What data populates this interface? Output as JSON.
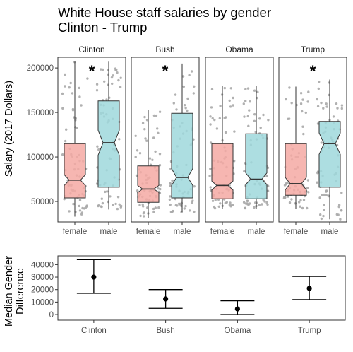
{
  "title_lines": [
    "White House staff salaries by gender",
    "Clinton - Trump"
  ],
  "colors": {
    "female": "#F4A9A3",
    "male": "#9FD8DC",
    "jitter": "#a8a8a8",
    "frame": "#333333",
    "line": "#333333"
  },
  "chart_data": [
    {
      "type": "boxplot",
      "ylabel": "Salary (2017 Dollars)",
      "ylim": [
        27000,
        212000
      ],
      "yticks": [
        50000,
        100000,
        150000,
        200000
      ],
      "ytick_labels": [
        "50000",
        "100000",
        "150000",
        "200000"
      ],
      "categories": [
        "female",
        "male"
      ],
      "notched": true,
      "panels": [
        {
          "name": "Clinton",
          "significant": true,
          "sig_label": "*",
          "boxes": [
            {
              "group": "female",
              "whisker_low": 33000,
              "q1": 54000,
              "median": 74000,
              "q3": 115000,
              "whisker_high": 207000,
              "notch_low": 68000,
              "notch_high": 80000
            },
            {
              "group": "male",
              "whisker_low": 41000,
              "q1": 66000,
              "median": 116000,
              "q3": 163000,
              "whisker_high": 207000,
              "notch_low": 102000,
              "notch_high": 130000
            }
          ]
        },
        {
          "name": "Bush",
          "significant": true,
          "sig_label": "*",
          "boxes": [
            {
              "group": "female",
              "whisker_low": 31000,
              "q1": 49000,
              "median": 64000,
              "q3": 90000,
              "whisker_high": 153000,
              "notch_low": 60000,
              "notch_high": 68000
            },
            {
              "group": "male",
              "whisker_low": 38000,
              "q1": 54000,
              "median": 77000,
              "q3": 149000,
              "whisker_high": 205000,
              "notch_low": 68000,
              "notch_high": 87000
            }
          ]
        },
        {
          "name": "Obama",
          "significant": false,
          "sig_label": "",
          "boxes": [
            {
              "group": "female",
              "whisker_low": 42000,
              "q1": 53000,
              "median": 68000,
              "q3": 115000,
              "whisker_high": 180000,
              "notch_low": 63000,
              "notch_high": 73000
            },
            {
              "group": "male",
              "whisker_low": 42000,
              "q1": 53000,
              "median": 75000,
              "q3": 126000,
              "whisker_high": 180000,
              "notch_low": 69000,
              "notch_high": 82000
            }
          ]
        },
        {
          "name": "Trump",
          "significant": true,
          "sig_label": "*",
          "boxes": [
            {
              "group": "female",
              "whisker_low": 42000,
              "q1": 57000,
              "median": 70000,
              "q3": 115000,
              "whisker_high": 179000,
              "notch_low": 63000,
              "notch_high": 77000
            },
            {
              "group": "male",
              "whisker_low": 30000,
              "q1": 66000,
              "median": 115000,
              "q3": 140000,
              "whisker_high": 187000,
              "notch_low": 103000,
              "notch_high": 127000
            }
          ]
        }
      ]
    },
    {
      "type": "errorbar",
      "ylabel_lines": [
        "Median Gender",
        "Difference"
      ],
      "ylim": [
        -4500,
        47000
      ],
      "yticks": [
        0,
        10000,
        20000,
        30000,
        40000
      ],
      "ytick_labels": [
        "0",
        "10000",
        "20000",
        "30000",
        "40000"
      ],
      "categories": [
        "Clinton",
        "Bush",
        "Obama",
        "Trump"
      ],
      "points": [
        {
          "name": "Clinton",
          "estimate": 30000,
          "low": 17000,
          "high": 44000
        },
        {
          "name": "Bush",
          "estimate": 12500,
          "low": 5000,
          "high": 20000
        },
        {
          "name": "Obama",
          "estimate": 4500,
          "low": 0,
          "high": 11000
        },
        {
          "name": "Trump",
          "estimate": 21000,
          "low": 12000,
          "high": 30500
        }
      ]
    }
  ]
}
